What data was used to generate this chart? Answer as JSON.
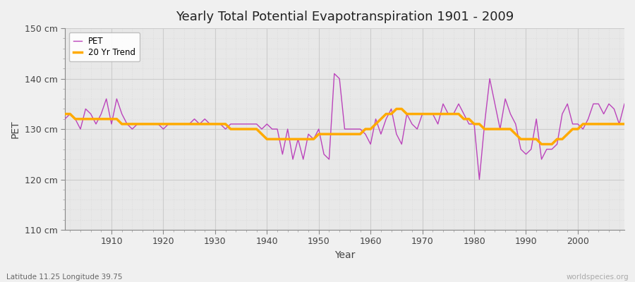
{
  "title": "Yearly Total Potential Evapotranspiration 1901 - 2009",
  "xlabel": "Year",
  "ylabel": "PET",
  "bottom_left_label": "Latitude 11.25 Longitude 39.75",
  "bottom_right_label": "worldspecies.org",
  "legend_labels": [
    "PET",
    "20 Yr Trend"
  ],
  "pet_color": "#bb44bb",
  "trend_color": "#ffaa00",
  "fig_bg_color": "#f0f0f0",
  "plot_bg_color": "#e8e8e8",
  "ylim": [
    110,
    150
  ],
  "xlim": [
    1901,
    2009
  ],
  "yticks": [
    110,
    120,
    130,
    140,
    150
  ],
  "ytick_labels": [
    "110 cm",
    "120 cm",
    "130 cm",
    "140 cm",
    "150 cm"
  ],
  "xticks": [
    1910,
    1920,
    1930,
    1940,
    1950,
    1960,
    1970,
    1980,
    1990,
    2000
  ],
  "years": [
    1901,
    1902,
    1903,
    1904,
    1905,
    1906,
    1907,
    1908,
    1909,
    1910,
    1911,
    1912,
    1913,
    1914,
    1915,
    1916,
    1917,
    1918,
    1919,
    1920,
    1921,
    1922,
    1923,
    1924,
    1925,
    1926,
    1927,
    1928,
    1929,
    1930,
    1931,
    1932,
    1933,
    1934,
    1935,
    1936,
    1937,
    1938,
    1939,
    1940,
    1941,
    1942,
    1943,
    1944,
    1945,
    1946,
    1947,
    1948,
    1949,
    1950,
    1951,
    1952,
    1953,
    1954,
    1955,
    1956,
    1957,
    1958,
    1959,
    1960,
    1961,
    1962,
    1963,
    1964,
    1965,
    1966,
    1967,
    1968,
    1969,
    1970,
    1971,
    1972,
    1973,
    1974,
    1975,
    1976,
    1977,
    1978,
    1979,
    1980,
    1981,
    1982,
    1983,
    1984,
    1985,
    1986,
    1987,
    1988,
    1989,
    1990,
    1991,
    1992,
    1993,
    1994,
    1995,
    1996,
    1997,
    1998,
    1999,
    2000,
    2001,
    2002,
    2003,
    2004,
    2005,
    2006,
    2007,
    2008,
    2009
  ],
  "pet_values": [
    132,
    133,
    132,
    130,
    134,
    133,
    131,
    133,
    136,
    131,
    136,
    133,
    131,
    130,
    131,
    131,
    131,
    131,
    131,
    130,
    131,
    131,
    131,
    131,
    131,
    132,
    131,
    132,
    131,
    131,
    131,
    130,
    131,
    131,
    131,
    131,
    131,
    131,
    130,
    131,
    130,
    130,
    125,
    130,
    124,
    128,
    124,
    129,
    128,
    130,
    125,
    124,
    141,
    140,
    130,
    130,
    130,
    130,
    129,
    127,
    132,
    129,
    132,
    134,
    129,
    127,
    133,
    131,
    130,
    133,
    133,
    133,
    131,
    135,
    133,
    133,
    135,
    133,
    131,
    131,
    120,
    131,
    140,
    135,
    130,
    136,
    133,
    131,
    126,
    125,
    126,
    132,
    124,
    126,
    126,
    127,
    133,
    135,
    131,
    131,
    130,
    132,
    135,
    135,
    133,
    135,
    134,
    131,
    135
  ],
  "trend_values": [
    133,
    133,
    132,
    132,
    132,
    132,
    132,
    132,
    132,
    132,
    132,
    131,
    131,
    131,
    131,
    131,
    131,
    131,
    131,
    131,
    131,
    131,
    131,
    131,
    131,
    131,
    131,
    131,
    131,
    131,
    131,
    131,
    130,
    130,
    130,
    130,
    130,
    130,
    129,
    128,
    128,
    128,
    128,
    128,
    128,
    128,
    128,
    128,
    128,
    129,
    129,
    129,
    129,
    129,
    129,
    129,
    129,
    129,
    130,
    130,
    131,
    132,
    133,
    133,
    134,
    134,
    133,
    133,
    133,
    133,
    133,
    133,
    133,
    133,
    133,
    133,
    133,
    132,
    132,
    131,
    131,
    130,
    130,
    130,
    130,
    130,
    130,
    129,
    128,
    128,
    128,
    128,
    127,
    127,
    127,
    128,
    128,
    129,
    130,
    130,
    131,
    131,
    131,
    131,
    131,
    131,
    131,
    131,
    131
  ]
}
